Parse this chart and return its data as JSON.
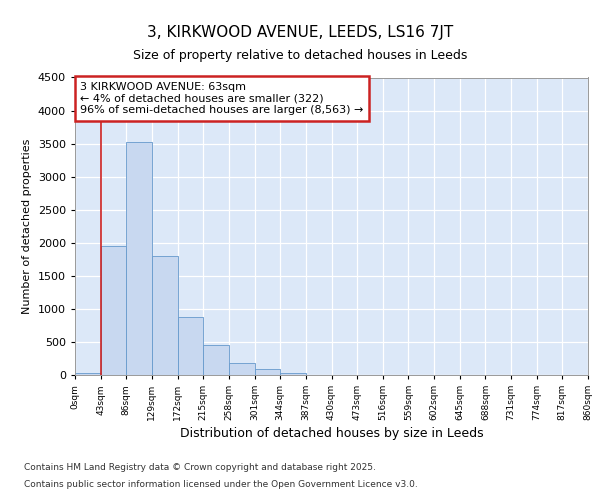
{
  "title1": "3, KIRKWOOD AVENUE, LEEDS, LS16 7JT",
  "title2": "Size of property relative to detached houses in Leeds",
  "xlabel": "Distribution of detached houses by size in Leeds",
  "ylabel": "Number of detached properties",
  "bin_labels": [
    "0sqm",
    "43sqm",
    "86sqm",
    "129sqm",
    "172sqm",
    "215sqm",
    "258sqm",
    "301sqm",
    "344sqm",
    "387sqm",
    "430sqm",
    "473sqm",
    "516sqm",
    "559sqm",
    "602sqm",
    "645sqm",
    "688sqm",
    "731sqm",
    "774sqm",
    "817sqm",
    "860sqm"
  ],
  "bar_values": [
    30,
    1950,
    3520,
    1800,
    870,
    460,
    180,
    90,
    30,
    0,
    0,
    0,
    0,
    0,
    0,
    0,
    0,
    0,
    0,
    0
  ],
  "bar_color": "#c8d8f0",
  "bar_edge_color": "#6699cc",
  "annotation_title": "3 KIRKWOOD AVENUE: 63sqm",
  "annotation_line1": "← 4% of detached houses are smaller (322)",
  "annotation_line2": "96% of semi-detached houses are larger (8,563) →",
  "annotation_box_facecolor": "#ffffff",
  "annotation_box_edgecolor": "#cc2222",
  "ylim": [
    0,
    4500
  ],
  "yticks": [
    0,
    500,
    1000,
    1500,
    2000,
    2500,
    3000,
    3500,
    4000,
    4500
  ],
  "red_line_bin": 1,
  "footer1": "Contains HM Land Registry data © Crown copyright and database right 2025.",
  "footer2": "Contains public sector information licensed under the Open Government Licence v3.0.",
  "bg_color": "#ffffff",
  "plot_bg_color": "#dce8f8"
}
